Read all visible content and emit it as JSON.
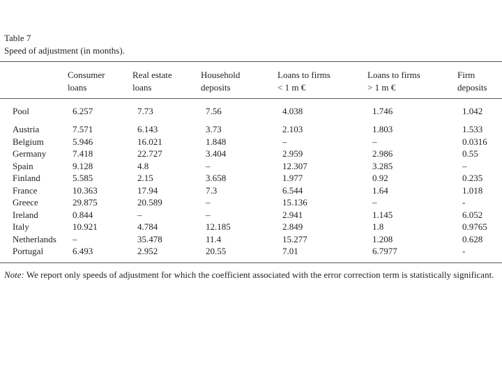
{
  "header": {
    "title": "Table 7",
    "subtitle": "Speed of adjustment (in months)."
  },
  "table": {
    "columns": [
      [
        "Consumer",
        "loans"
      ],
      [
        "Real estate",
        "loans"
      ],
      [
        "Household",
        "deposits"
      ],
      [
        "Loans to firms",
        "< 1 m €"
      ],
      [
        "Loans to firms",
        "> 1 m €"
      ],
      [
        "Firm",
        "deposits"
      ]
    ],
    "rows": [
      [
        "Pool",
        "6.257",
        "7.73",
        "7.56",
        "4.038",
        "1.746",
        "1.042"
      ],
      [
        "Austria",
        "7.571",
        "6.143",
        "3.73",
        "2.103",
        "1.803",
        "1.533"
      ],
      [
        "Belgium",
        "5.946",
        "16.021",
        "1.848",
        "–",
        "–",
        "0.0316"
      ],
      [
        "Germany",
        "7.418",
        "22.727",
        "3.404",
        "2.959",
        "2.986",
        "0.55"
      ],
      [
        "Spain",
        "9.128",
        "4.8",
        "–",
        "12.307",
        "3.285",
        "–"
      ],
      [
        "Finland",
        "5.585",
        "2.15",
        "3.658",
        "1.977",
        "0.92",
        "0.235"
      ],
      [
        "France",
        "10.363",
        "17.94",
        "7.3",
        "6.544",
        "1.64",
        "1.018"
      ],
      [
        "Greece",
        "29.875",
        "20.589",
        "–",
        "15.136",
        "–",
        "-"
      ],
      [
        "Ireland",
        "0.844",
        "–",
        "–",
        "2.941",
        "1.145",
        "6.052"
      ],
      [
        "Italy",
        "10.921",
        "4.784",
        "12.185",
        "2.849",
        "1.8",
        "0.9765"
      ],
      [
        "Netherlands",
        "–",
        "35.478",
        "11.4",
        "15.277",
        "1.208",
        "0.628"
      ],
      [
        "Portugal",
        "6.493",
        "2.952",
        "20.55",
        "7.01",
        "6.7977",
        "-"
      ]
    ]
  },
  "note": {
    "label": "Note:",
    "text": "We report only speeds of adjustment for which the coefficient associated with the error correction term is statistically significant."
  }
}
